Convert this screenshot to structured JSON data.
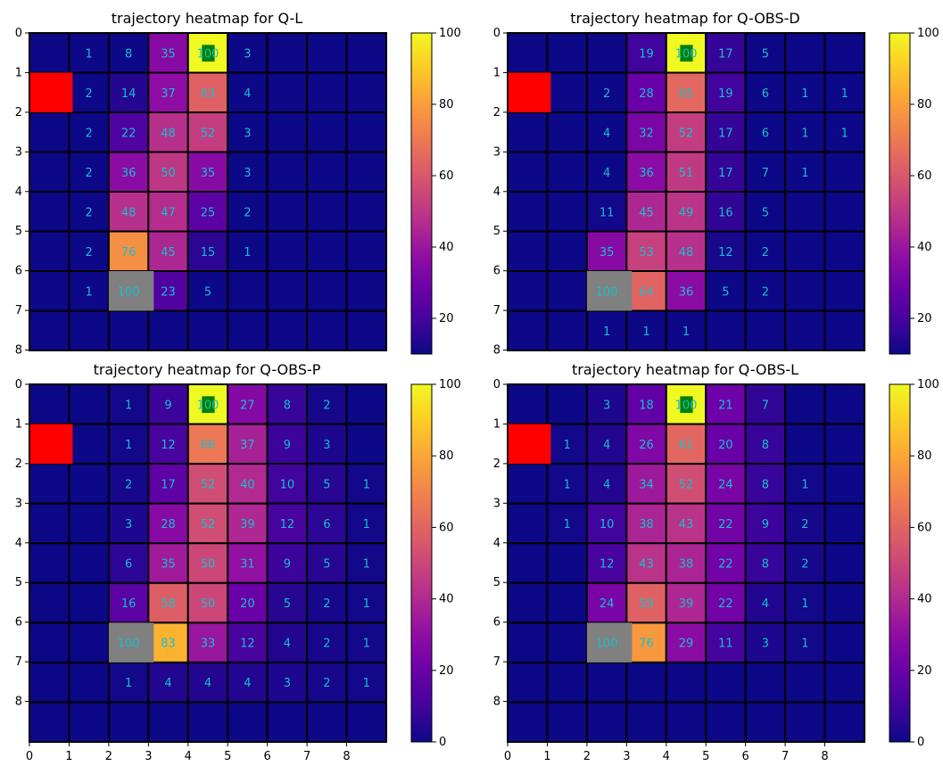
{
  "chart_data": [
    {
      "type": "heatmap",
      "title": "trajectory heatmap for Q-L",
      "x_ticks": [],
      "y_ticks": [
        "0",
        "1",
        "2",
        "3",
        "4",
        "5",
        "6",
        "7",
        "8"
      ],
      "colorbar": {
        "vmin": 10,
        "vmax": 100,
        "ticks": [
          "20",
          "40",
          "60",
          "80",
          "100"
        ]
      },
      "rows": 8,
      "cols": 9,
      "values": [
        [
          null,
          1,
          8,
          35,
          100,
          3,
          null,
          null,
          null
        ],
        [
          null,
          2,
          14,
          37,
          63,
          4,
          null,
          null,
          null
        ],
        [
          null,
          2,
          22,
          48,
          52,
          3,
          null,
          null,
          null
        ],
        [
          null,
          2,
          36,
          50,
          35,
          3,
          null,
          null,
          null
        ],
        [
          null,
          2,
          48,
          47,
          25,
          2,
          null,
          null,
          null
        ],
        [
          null,
          2,
          76,
          45,
          15,
          1,
          null,
          null,
          null
        ],
        [
          null,
          1,
          100,
          23,
          5,
          null,
          null,
          null,
          null
        ],
        [
          null,
          null,
          null,
          null,
          null,
          null,
          null,
          null,
          null
        ]
      ],
      "obstacle": {
        "row": 1,
        "col": 0,
        "color": "#ff0000"
      },
      "start": {
        "row": 6,
        "col": 2,
        "color": "#808080"
      },
      "goal": {
        "row": 0,
        "col": 4,
        "color": "#008000"
      }
    },
    {
      "type": "heatmap",
      "title": "trajectory heatmap for Q-OBS-D",
      "x_ticks": [],
      "y_ticks": [
        "0",
        "1",
        "2",
        "3",
        "4",
        "5",
        "6",
        "7",
        "8"
      ],
      "colorbar": {
        "vmin": 10,
        "vmax": 100,
        "ticks": [
          "20",
          "40",
          "60",
          "80",
          "100"
        ]
      },
      "rows": 8,
      "cols": 9,
      "values": [
        [
          null,
          null,
          null,
          19,
          100,
          17,
          5,
          null,
          null
        ],
        [
          null,
          null,
          2,
          28,
          65,
          19,
          6,
          1,
          1
        ],
        [
          null,
          null,
          4,
          32,
          52,
          17,
          6,
          1,
          1
        ],
        [
          null,
          null,
          4,
          36,
          51,
          17,
          7,
          1,
          null
        ],
        [
          null,
          null,
          11,
          45,
          49,
          16,
          5,
          null,
          null
        ],
        [
          null,
          null,
          35,
          53,
          48,
          12,
          2,
          null,
          null
        ],
        [
          null,
          null,
          100,
          64,
          36,
          5,
          2,
          null,
          null
        ],
        [
          null,
          null,
          1,
          1,
          1,
          null,
          null,
          null,
          null
        ]
      ],
      "obstacle": {
        "row": 1,
        "col": 0,
        "color": "#ff0000"
      },
      "start": {
        "row": 6,
        "col": 2,
        "color": "#808080"
      },
      "goal": {
        "row": 0,
        "col": 4,
        "color": "#008000"
      }
    },
    {
      "type": "heatmap",
      "title": "trajectory heatmap for Q-OBS-P",
      "x_ticks": [
        "0",
        "1",
        "2",
        "3",
        "4",
        "5",
        "6",
        "7",
        "8"
      ],
      "y_ticks": [
        "0",
        "1",
        "2",
        "3",
        "4",
        "5",
        "6",
        "7",
        "8"
      ],
      "colorbar": {
        "vmin": 0,
        "vmax": 100,
        "ticks": [
          "0",
          "20",
          "40",
          "60",
          "80",
          "100"
        ]
      },
      "rows": 9,
      "cols": 9,
      "values": [
        [
          null,
          null,
          1,
          9,
          100,
          27,
          8,
          2,
          null
        ],
        [
          null,
          null,
          1,
          12,
          66,
          37,
          9,
          3,
          null
        ],
        [
          null,
          null,
          2,
          17,
          52,
          40,
          10,
          5,
          1
        ],
        [
          null,
          null,
          3,
          28,
          52,
          39,
          12,
          6,
          1
        ],
        [
          null,
          null,
          6,
          35,
          50,
          31,
          9,
          5,
          1
        ],
        [
          null,
          null,
          16,
          58,
          50,
          20,
          5,
          2,
          1
        ],
        [
          null,
          null,
          100,
          83,
          33,
          12,
          4,
          2,
          1
        ],
        [
          null,
          null,
          1,
          4,
          4,
          4,
          3,
          2,
          1
        ],
        [
          null,
          null,
          null,
          null,
          null,
          null,
          null,
          null,
          null
        ]
      ],
      "obstacle": {
        "row": 1,
        "col": 0,
        "color": "#ff0000"
      },
      "start": {
        "row": 6,
        "col": 2,
        "color": "#808080"
      },
      "goal": {
        "row": 0,
        "col": 4,
        "color": "#008000"
      }
    },
    {
      "type": "heatmap",
      "title": "trajectory heatmap for Q-OBS-L",
      "x_ticks": [
        "0",
        "1",
        "2",
        "3",
        "4",
        "5",
        "6",
        "7",
        "8"
      ],
      "y_ticks": [
        "0",
        "1",
        "2",
        "3",
        "4",
        "5",
        "6",
        "7",
        "8"
      ],
      "colorbar": {
        "vmin": 0,
        "vmax": 100,
        "ticks": [
          "0",
          "20",
          "40",
          "60",
          "80",
          "100"
        ]
      },
      "rows": 9,
      "cols": 9,
      "values": [
        [
          null,
          null,
          3,
          18,
          100,
          21,
          7,
          null,
          null
        ],
        [
          null,
          1,
          4,
          26,
          61,
          20,
          8,
          null,
          null
        ],
        [
          null,
          1,
          4,
          34,
          52,
          24,
          8,
          1,
          null
        ],
        [
          null,
          1,
          10,
          38,
          43,
          22,
          9,
          2,
          null
        ],
        [
          null,
          null,
          12,
          43,
          38,
          22,
          8,
          2,
          null
        ],
        [
          null,
          null,
          24,
          59,
          39,
          22,
          4,
          1,
          null
        ],
        [
          null,
          null,
          100,
          76,
          29,
          11,
          3,
          1,
          null
        ],
        [
          null,
          null,
          null,
          null,
          null,
          null,
          null,
          null,
          null
        ],
        [
          null,
          null,
          null,
          null,
          null,
          null,
          null,
          null,
          null
        ]
      ],
      "obstacle": {
        "row": 1,
        "col": 0,
        "color": "#ff0000"
      },
      "start": {
        "row": 6,
        "col": 2,
        "color": "#808080"
      },
      "goal": {
        "row": 0,
        "col": 4,
        "color": "#008000"
      }
    }
  ]
}
